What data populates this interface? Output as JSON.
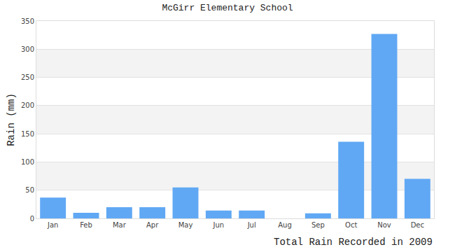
{
  "chart_data": {
    "type": "bar",
    "title": "McGirr Elementary School",
    "y_label": "Rain (mm)",
    "x_label": "Total Rain Recorded in 2009",
    "categories": [
      "Jan",
      "Feb",
      "Mar",
      "Apr",
      "May",
      "Jun",
      "Jul",
      "Aug",
      "Sep",
      "Oct",
      "Nov",
      "Dec"
    ],
    "values": [
      37,
      10,
      20,
      20,
      55,
      14,
      14,
      0,
      9,
      136,
      327,
      70
    ],
    "color": "#60a8f4",
    "ylim": [
      0,
      350
    ],
    "yticks": [
      0,
      50,
      100,
      150,
      200,
      250,
      300,
      350
    ],
    "grid": true
  }
}
